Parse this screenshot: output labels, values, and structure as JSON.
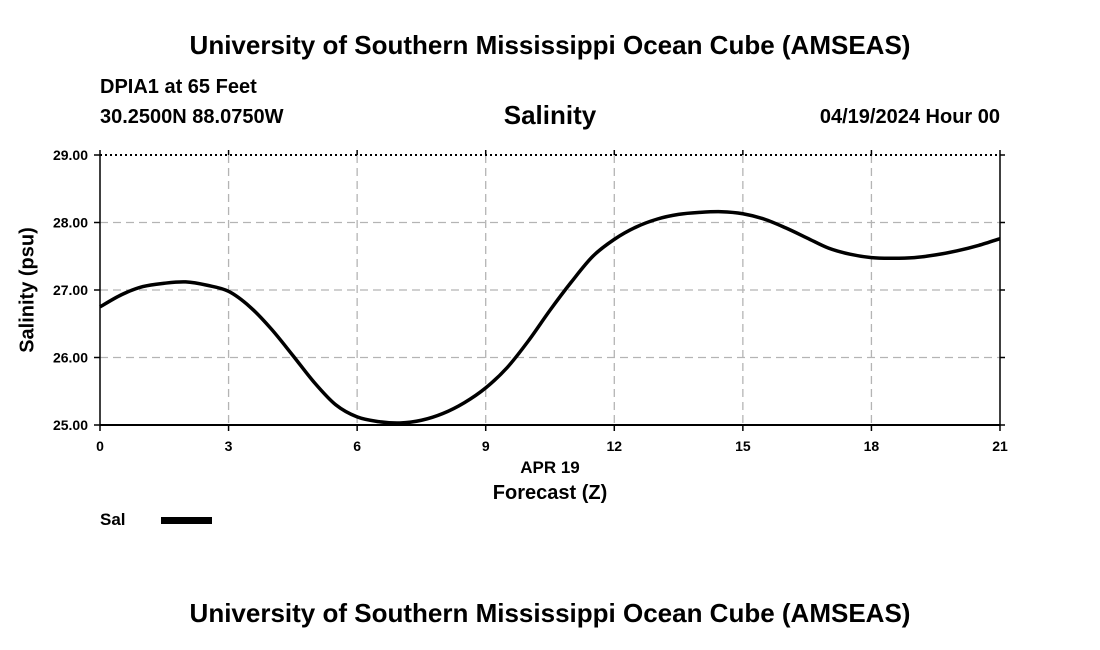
{
  "header": {
    "title_top": "University of Southern Mississippi Ocean Cube (AMSEAS)",
    "title_bottom": "University of Southern Mississippi Ocean Cube (AMSEAS)",
    "station": "DPIA1 at 65 Feet",
    "coords": "30.2500N  88.0750W",
    "datetime": "04/19/2024 Hour 00"
  },
  "legend": {
    "label": "Sal",
    "color": "#000000"
  },
  "chart_data": {
    "type": "line",
    "title": "Salinity",
    "xlabel": "Forecast (Z)",
    "xdate_label": "APR 19",
    "ylabel": "Salinity (psu)",
    "xlim": [
      0,
      21
    ],
    "ylim": [
      25,
      29
    ],
    "xticks": [
      0,
      3,
      6,
      9,
      12,
      15,
      18,
      21
    ],
    "yticks": [
      25,
      26,
      27,
      28,
      29
    ],
    "ytick_labels": [
      "25.00",
      "26.00",
      "27.00",
      "28.00",
      "29.00"
    ],
    "grid": true,
    "series": [
      {
        "name": "Sal",
        "color": "#000000",
        "x": [
          0,
          0.5,
          1,
          1.5,
          2,
          2.5,
          3,
          3.5,
          4,
          4.5,
          5,
          5.5,
          6,
          6.5,
          7,
          7.5,
          8,
          8.5,
          9,
          9.5,
          10,
          10.5,
          11,
          11.5,
          12,
          12.5,
          13,
          13.5,
          14,
          14.5,
          15,
          15.5,
          16,
          16.5,
          17,
          17.5,
          18,
          18.5,
          19,
          19.5,
          20,
          20.5,
          21
        ],
        "values": [
          26.75,
          26.93,
          27.05,
          27.1,
          27.12,
          27.07,
          26.98,
          26.75,
          26.42,
          26.03,
          25.63,
          25.3,
          25.12,
          25.05,
          25.03,
          25.07,
          25.17,
          25.33,
          25.55,
          25.85,
          26.25,
          26.7,
          27.12,
          27.5,
          27.75,
          27.93,
          28.05,
          28.12,
          28.15,
          28.16,
          28.13,
          28.05,
          27.92,
          27.77,
          27.62,
          27.53,
          27.48,
          27.47,
          27.48,
          27.52,
          27.58,
          27.66,
          27.76
        ]
      }
    ]
  }
}
